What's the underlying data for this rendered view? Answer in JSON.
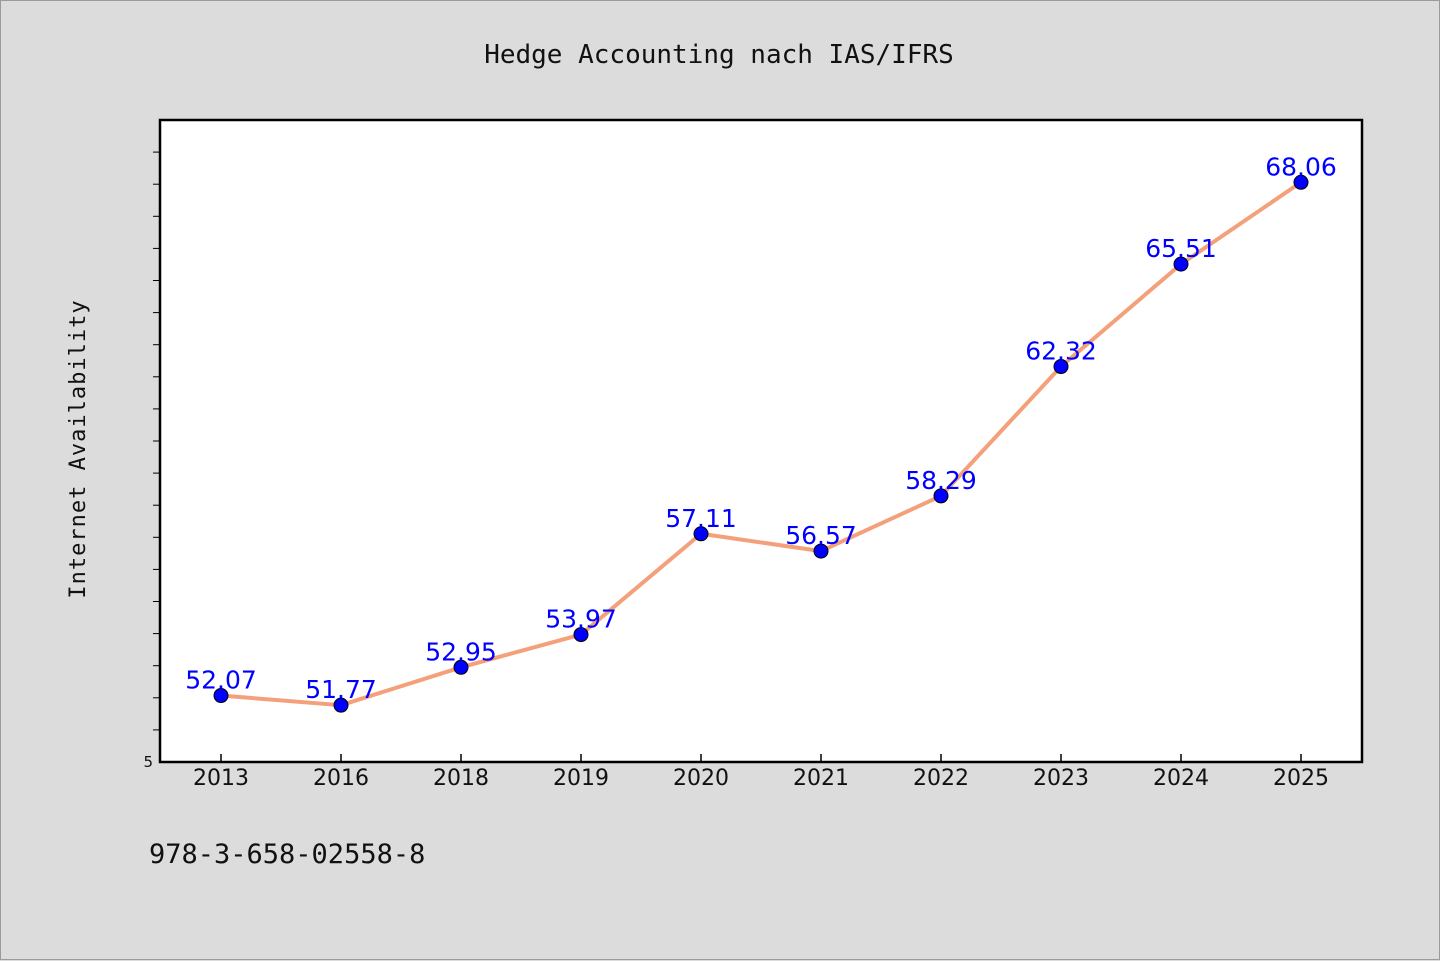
{
  "chart_data": {
    "type": "line",
    "title": "Hedge Accounting nach IAS/IFRS",
    "xlabel": "",
    "ylabel": "Internet Availability",
    "categories": [
      "2013",
      "2016",
      "2018",
      "2019",
      "2020",
      "2021",
      "2022",
      "2023",
      "2024",
      "2025"
    ],
    "series": [
      {
        "values": [
          52.07,
          51.77,
          52.95,
          53.97,
          57.11,
          56.57,
          58.29,
          62.32,
          65.51,
          68.06
        ]
      }
    ],
    "data_labels": [
      "52.07",
      "51.77",
      "52.95",
      "53.97",
      "57.11",
      "56.57",
      "58.29",
      "62.32",
      "65.51",
      "68.06"
    ],
    "ylim": [
      50.0,
      70.0
    ],
    "y_tick_labels": [
      "5"
    ],
    "grid": false,
    "line_color": "#f4a07a",
    "marker_color": "#0000ff",
    "label_color": "#0000ff"
  },
  "footnote": "978-3-658-02558-8"
}
